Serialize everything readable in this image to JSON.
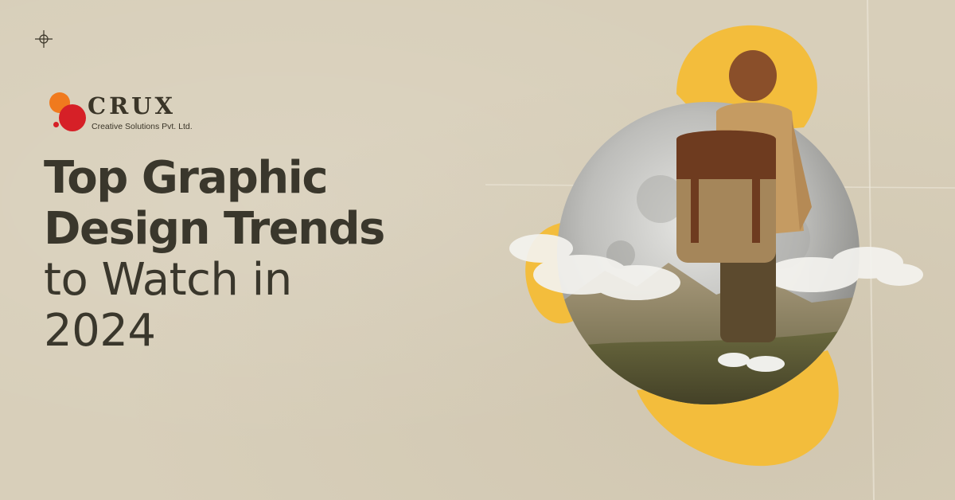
{
  "brand": {
    "name": "CRUX",
    "tagline": "Creative Solutions Pvt. Ltd.",
    "colors": {
      "orange": "#f07a1e",
      "red": "#d62027",
      "dark": "#3a3528"
    }
  },
  "headline": {
    "line1": "Top Graphic",
    "line2": "Design Trends",
    "line3": "to Watch in",
    "line4": "2024"
  },
  "colors": {
    "background": "#d8cfba",
    "accent_yellow": "#f3bd3c",
    "text": "#3a372c"
  },
  "icons": [
    "crosshair-icon"
  ],
  "artwork": {
    "description_icon": "boy-with-backpack-on-moon-illustration"
  }
}
